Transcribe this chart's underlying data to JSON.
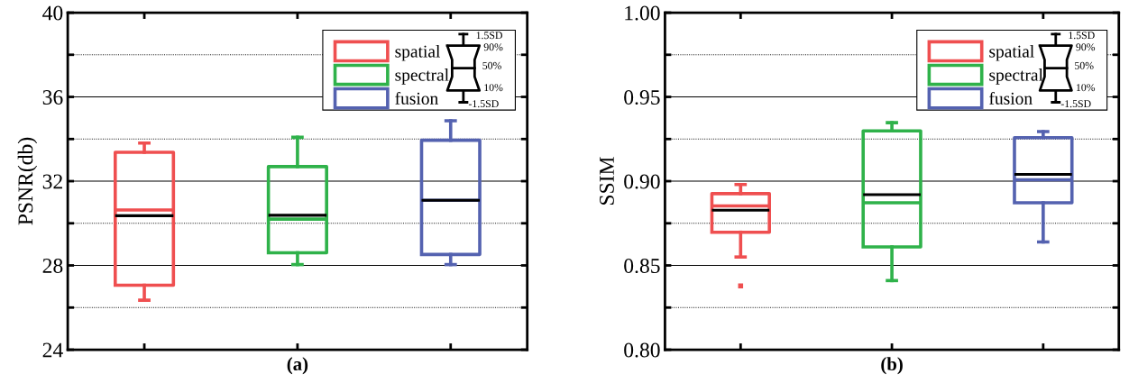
{
  "chart_data": [
    {
      "type": "box",
      "xlabel": "(a)",
      "ylabel": "PSNR(db)",
      "categories": [
        null,
        null,
        null
      ],
      "series": [
        {
          "name": "spatial",
          "color": "#ef4f50",
          "boxes": [
            {
              "low": 26.35,
              "q1": 27.06,
              "median": 30.63,
              "q3": 33.37,
              "high": 33.81,
              "mean": 30.36
            },
            null,
            null
          ]
        },
        {
          "name": "spectral",
          "color": "#2fb24a",
          "boxes": [
            null,
            {
              "low": 28.04,
              "q1": 28.6,
              "median": 30.2,
              "q3": 32.69,
              "high": 34.08,
              "mean": 30.38
            },
            null
          ]
        },
        {
          "name": "fusion",
          "color": "#5462b0",
          "boxes": [
            null,
            null,
            {
              "low": 28.04,
              "q1": 28.52,
              "median": 31.09,
              "q3": 33.94,
              "high": 34.87,
              "mean": 31.09
            }
          ]
        }
      ],
      "ylim": [
        24,
        40
      ],
      "yticks": [
        24,
        {
          "value": 26,
          "label": null
        },
        28,
        {
          "value": 30,
          "label": null
        },
        32,
        {
          "value": 34,
          "label": null
        },
        36,
        {
          "value": 38,
          "label": null
        },
        40
      ],
      "grid": "y",
      "legend": "top right",
      "annotations": [
        "1.5SD",
        "90%",
        "50%",
        "10%",
        "-1.5SD"
      ]
    },
    {
      "type": "box",
      "xlabel": "(b)",
      "ylabel": "SSIM",
      "categories": [
        null,
        null,
        null
      ],
      "series": [
        {
          "name": "spatial",
          "color": "#ef4f50",
          "boxes": [
            {
              "low": 0.855,
              "q1": 0.8697,
              "median": 0.8853,
              "q3": 0.8926,
              "high": 0.898,
              "mean": 0.8828,
              "outliers": [
                0.8378
              ]
            },
            null,
            null
          ]
        },
        {
          "name": "spectral",
          "color": "#2fb24a",
          "boxes": [
            null,
            {
              "low": 0.841,
              "q1": 0.861,
              "median": 0.8872,
              "q3": 0.9298,
              "high": 0.9347,
              "mean": 0.892
            },
            null
          ]
        },
        {
          "name": "fusion",
          "color": "#5462b0",
          "boxes": [
            null,
            null,
            {
              "low": 0.8639,
              "q1": 0.8872,
              "median": 0.9008,
              "q3": 0.9258,
              "high": 0.9294,
              "mean": 0.904
            }
          ]
        }
      ],
      "ylim": [
        0.8,
        1.0
      ],
      "yticks": [
        {
          "value": 0.8,
          "label": "0.80"
        },
        {
          "value": 0.825,
          "label": null
        },
        {
          "value": 0.85,
          "label": "0.85"
        },
        {
          "value": 0.875,
          "label": null
        },
        {
          "value": 0.9,
          "label": "0.90"
        },
        {
          "value": 0.925,
          "label": null
        },
        {
          "value": 0.95,
          "label": "0.95"
        },
        {
          "value": 0.975,
          "label": null
        },
        {
          "value": 1.0,
          "label": "1.00"
        }
      ],
      "grid": "y",
      "legend": "top right",
      "annotations": [
        "1.5SD",
        "90%",
        "50%",
        "10%",
        "-1.5SD"
      ]
    }
  ]
}
